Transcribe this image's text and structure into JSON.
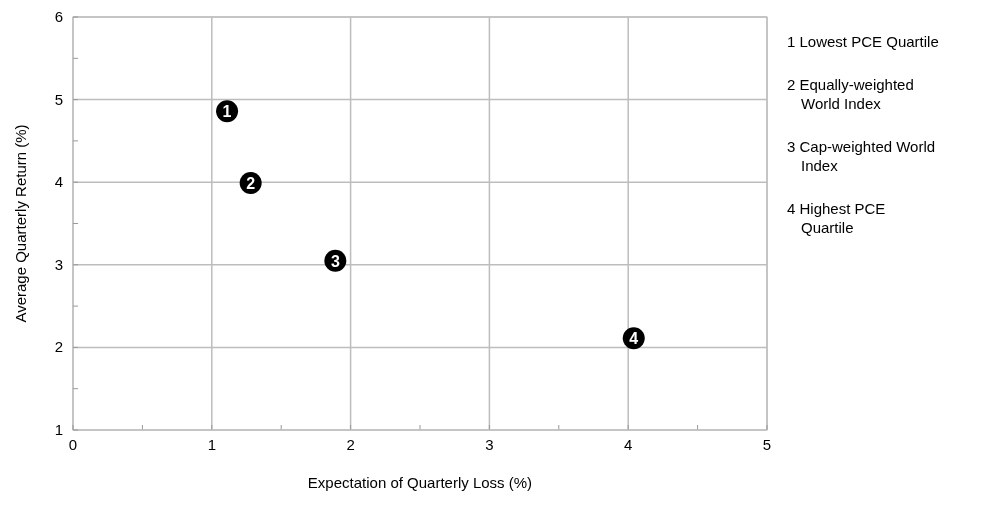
{
  "chart_data": {
    "type": "scatter",
    "xlabel": "Expectation of Quarterly Loss (%)",
    "ylabel": "Average Quarterly Return (%)",
    "x": [
      1.11,
      1.28,
      1.89,
      4.04
    ],
    "series": [
      {
        "color": "#000000",
        "values": [
          4.86,
          3.99,
          3.05,
          2.11
        ]
      }
    ],
    "marker": "circle",
    "grid": true,
    "xlim": [
      0,
      5
    ],
    "xticks": [
      0,
      {
        "value": 0.5,
        "label": null
      },
      1,
      {
        "value": 1.5,
        "label": null
      },
      2,
      {
        "value": 2.5,
        "label": null
      },
      3,
      {
        "value": 3.5,
        "label": null
      },
      4,
      {
        "value": 4.5,
        "label": null
      },
      5
    ],
    "ylim": [
      1,
      6
    ],
    "yticks": [
      1,
      {
        "value": 1.5,
        "label": null
      },
      2,
      {
        "value": 2.5,
        "label": null
      },
      3,
      {
        "value": 3.5,
        "label": null
      },
      4,
      {
        "value": 4.5,
        "label": null
      },
      5,
      {
        "value": 5.5,
        "label": null
      },
      6
    ],
    "annotations": [
      {
        "text": "1",
        "x": 1.11,
        "y": 4.86
      },
      {
        "text": "2",
        "x": 1.28,
        "y": 3.99
      },
      {
        "text": "3",
        "x": 1.89,
        "y": 3.05
      },
      {
        "text": "4",
        "x": 4.04,
        "y": 2.11
      },
      "1 Lowest PCE Quartile",
      "2 Equally-weighted World Index",
      "3 Cap-weighted World Index",
      "4 Highest PCE Quartile"
    ]
  }
}
